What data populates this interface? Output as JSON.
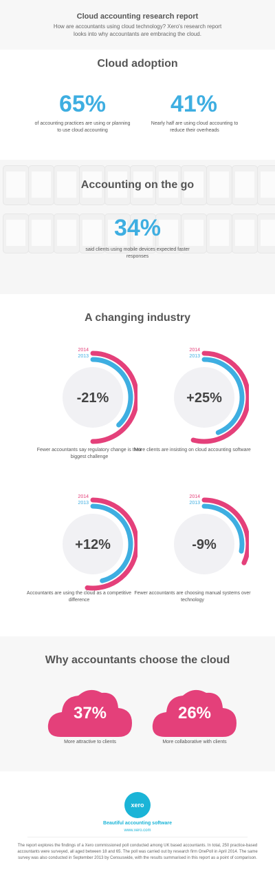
{
  "header": {
    "title": "Cloud accounting research report",
    "subtitle": "How are accountants using cloud technology? Xero's research report looks into why accountants are embracing the cloud."
  },
  "adoption": {
    "title": "Cloud adoption",
    "stats": [
      {
        "value": "65%",
        "caption": "of accounting practices are using or planning to use cloud accounting"
      },
      {
        "value": "41%",
        "caption": "Nearly half are using cloud accounting to reduce their overheads"
      }
    ]
  },
  "mobile": {
    "title": "Accounting on the go",
    "value": "34%",
    "caption": "said clients using mobile devices expected faster responses"
  },
  "industry": {
    "title": "A changing industry",
    "legend": {
      "y2014": "2014",
      "y2013": "2013"
    },
    "colors": {
      "y2014": "#e4407a",
      "y2013": "#3eaee1",
      "circle": "#f1f1f4"
    }
  },
  "chart_data": {
    "type": "other",
    "title": "A changing industry",
    "series": [
      "2014",
      "2013"
    ],
    "items": [
      {
        "change": "-21%",
        "caption": "Fewer accountants say regulatory change is their biggest challenge",
        "arc2014": 0.5,
        "arc2013": 0.38
      },
      {
        "change": "+25%",
        "caption": "More clients are insisting on cloud accounting software",
        "arc2014": 0.54,
        "arc2013": 0.44
      },
      {
        "change": "+12%",
        "caption": "Accountants are using the cloud as a competitive difference",
        "arc2014": 0.52,
        "arc2013": 0.46
      },
      {
        "change": "-9%",
        "caption": "Fewer accountants are choosing manual systems over technology",
        "arc2014": 0.32,
        "arc2013": 0.28
      }
    ]
  },
  "why": {
    "title": "Why accountants choose the cloud",
    "color": "#e4407a",
    "items": [
      {
        "value": "37%",
        "caption": "More attractive to clients"
      },
      {
        "value": "26%",
        "caption": "More collaborative with clients"
      }
    ]
  },
  "footer": {
    "logo": "xero",
    "tagline": "Beautiful accounting software",
    "url": "www.xero.com",
    "fine_print": "The report explores the findings of a Xero commissioned poll conducted among UK based accountants. In total, 250 practice-based accountants were surveyed, all aged between 18 and 65. The poll was carried out by research firm OnePoll in April 2014. The same survey was also conducted in September 2013 by Censuswide, with the results summarised in this report as a point of comparison."
  }
}
